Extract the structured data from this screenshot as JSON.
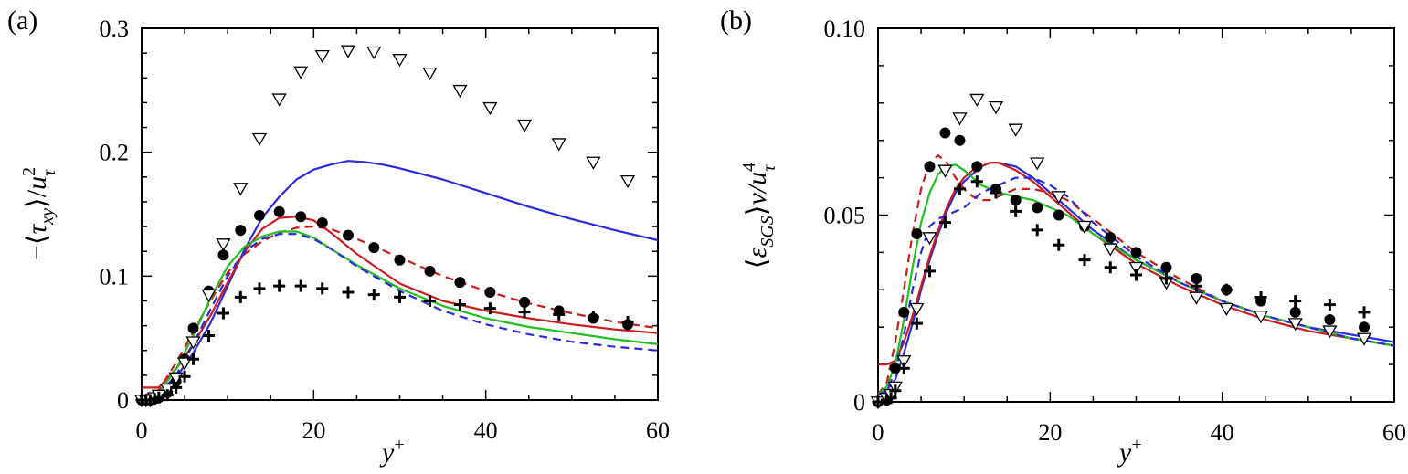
{
  "chart_data": [
    {
      "type": "line",
      "panel": "(a)",
      "xlabel": "y⁺",
      "ylabel": "−⟨τxy⟩/u²τ",
      "xlim": [
        0,
        60
      ],
      "ylim": [
        0,
        0.3
      ],
      "xticks": [
        0,
        20,
        40,
        60
      ],
      "yticks": [
        0,
        0.1,
        0.2,
        0.3
      ],
      "xtick_labels": [
        "0",
        "20",
        "40",
        "60"
      ],
      "ytick_labels": [
        "0",
        "0.1",
        "0.2",
        "0.3"
      ],
      "grid": false,
      "lines": [
        {
          "color": "#2a2ae0",
          "dash": "solid",
          "x": [
            0,
            2,
            4,
            6,
            8,
            10,
            12,
            14,
            16,
            18,
            20,
            22,
            24,
            26,
            28,
            30,
            35,
            40,
            45,
            50,
            55,
            60
          ],
          "y": [
            0.002,
            0.004,
            0.018,
            0.038,
            0.062,
            0.092,
            0.122,
            0.147,
            0.164,
            0.178,
            0.186,
            0.19,
            0.193,
            0.192,
            0.19,
            0.187,
            0.178,
            0.167,
            0.156,
            0.146,
            0.137,
            0.129
          ]
        },
        {
          "color": "#cc1b1b",
          "dash": "solid",
          "x": [
            0,
            2,
            4,
            6,
            8,
            10,
            12,
            14,
            16,
            18,
            20,
            22,
            25,
            30,
            35,
            40,
            45,
            50,
            55,
            60
          ],
          "y": [
            0.01,
            0.01,
            0.025,
            0.045,
            0.068,
            0.095,
            0.12,
            0.138,
            0.147,
            0.148,
            0.145,
            0.135,
            0.118,
            0.094,
            0.08,
            0.072,
            0.066,
            0.061,
            0.057,
            0.054
          ]
        },
        {
          "color": "#cc1b1b",
          "dash": "dash",
          "x": [
            0,
            2,
            4,
            6,
            8,
            10,
            12,
            14,
            16,
            18,
            20,
            22,
            25,
            30,
            35,
            40,
            45,
            50,
            55,
            60
          ],
          "y": [
            0.003,
            0.008,
            0.03,
            0.055,
            0.08,
            0.103,
            0.118,
            0.128,
            0.135,
            0.139,
            0.14,
            0.138,
            0.13,
            0.115,
            0.1,
            0.088,
            0.078,
            0.07,
            0.063,
            0.058
          ]
        },
        {
          "color": "#1fc01f",
          "dash": "solid",
          "x": [
            0,
            2,
            4,
            6,
            8,
            10,
            12,
            14,
            16,
            18,
            20,
            22,
            25,
            30,
            35,
            40,
            45,
            50,
            55,
            60
          ],
          "y": [
            0.002,
            0.006,
            0.025,
            0.052,
            0.082,
            0.108,
            0.124,
            0.132,
            0.136,
            0.136,
            0.131,
            0.122,
            0.109,
            0.09,
            0.076,
            0.066,
            0.059,
            0.054,
            0.049,
            0.045
          ]
        },
        {
          "color": "#2a2ae0",
          "dash": "dash",
          "x": [
            0,
            2,
            4,
            6,
            8,
            10,
            12,
            14,
            16,
            18,
            20,
            22,
            25,
            30,
            35,
            40,
            45,
            50,
            55,
            60
          ],
          "y": [
            0.002,
            0.005,
            0.02,
            0.045,
            0.073,
            0.1,
            0.12,
            0.13,
            0.134,
            0.134,
            0.13,
            0.122,
            0.108,
            0.088,
            0.072,
            0.061,
            0.053,
            0.047,
            0.043,
            0.04
          ]
        }
      ],
      "markers": [
        {
          "symbol": "circle",
          "x": [
            0,
            0.5,
            1,
            1.5,
            2,
            3,
            4,
            5,
            6,
            7.8,
            9.5,
            11.5,
            13.7,
            16,
            18.5,
            21,
            24,
            27,
            30,
            33.5,
            37,
            40.5,
            44.5,
            48.5,
            52.5,
            56.5
          ],
          "y": [
            0,
            0,
            0,
            0.001,
            0.002,
            0.006,
            0.015,
            0.033,
            0.058,
            0.088,
            0.117,
            0.137,
            0.149,
            0.152,
            0.148,
            0.143,
            0.133,
            0.123,
            0.113,
            0.104,
            0.095,
            0.087,
            0.079,
            0.072,
            0.066,
            0.061
          ]
        },
        {
          "symbol": "triangle-down",
          "x": [
            0,
            0.5,
            1,
            1.5,
            2,
            3,
            4,
            5,
            6,
            7.8,
            9.5,
            11.5,
            13.7,
            16,
            18.5,
            21,
            24,
            27,
            30,
            33.5,
            37,
            40.5,
            44.5,
            48.5,
            52.5,
            56.5
          ],
          "y": [
            0,
            0,
            0,
            0.002,
            0.004,
            0.009,
            0.018,
            0.03,
            0.047,
            0.085,
            0.126,
            0.171,
            0.211,
            0.243,
            0.265,
            0.278,
            0.282,
            0.281,
            0.275,
            0.264,
            0.25,
            0.236,
            0.222,
            0.207,
            0.192,
            0.177
          ]
        },
        {
          "symbol": "plus",
          "x": [
            0,
            0.5,
            1,
            1.5,
            2,
            3,
            4,
            5,
            6,
            7.8,
            9.5,
            11.5,
            13.7,
            16,
            18.5,
            21,
            24,
            27,
            30,
            33.5,
            37,
            40.5,
            44.5,
            48.5,
            52.5,
            56.5
          ],
          "y": [
            0,
            0,
            0,
            0.001,
            0.002,
            0.004,
            0.01,
            0.019,
            0.033,
            0.052,
            0.07,
            0.083,
            0.09,
            0.092,
            0.092,
            0.09,
            0.087,
            0.085,
            0.083,
            0.08,
            0.077,
            0.074,
            0.071,
            0.069,
            0.067,
            0.063
          ]
        }
      ]
    },
    {
      "type": "line",
      "panel": "(b)",
      "xlabel": "y⁺",
      "ylabel": "⟨εSGS⟩ν/u⁴τ",
      "xlim": [
        0,
        60
      ],
      "ylim": [
        0,
        0.1
      ],
      "xticks": [
        0,
        20,
        40,
        60
      ],
      "yticks": [
        0,
        0.05,
        0.1
      ],
      "xtick_labels": [
        "0",
        "20",
        "40",
        "60"
      ],
      "ytick_labels": [
        "0",
        "0.05",
        "0.10"
      ],
      "grid": false,
      "lines": [
        {
          "color": "#2a2ae0",
          "dash": "solid",
          "x": [
            0,
            1,
            2,
            3,
            4,
            5,
            6,
            7,
            8,
            9,
            10,
            11,
            12,
            13,
            14,
            15,
            16,
            18,
            20,
            22,
            25,
            30,
            35,
            40,
            45,
            50,
            55,
            60
          ],
          "y": [
            0.002,
            0.003,
            0.006,
            0.013,
            0.021,
            0.03,
            0.038,
            0.045,
            0.051,
            0.056,
            0.059,
            0.061,
            0.063,
            0.064,
            0.064,
            0.0635,
            0.063,
            0.06,
            0.056,
            0.052,
            0.046,
            0.038,
            0.032,
            0.027,
            0.023,
            0.02,
            0.018,
            0.016
          ]
        },
        {
          "color": "#cc1b1b",
          "dash": "solid",
          "x": [
            0,
            1,
            2,
            3,
            4,
            5,
            6,
            7,
            8,
            9,
            10,
            11,
            12,
            13,
            14,
            15,
            16,
            18,
            20,
            22,
            25,
            30,
            35,
            40,
            45,
            50,
            55,
            60
          ],
          "y": [
            0.01,
            0.01,
            0.011,
            0.016,
            0.023,
            0.031,
            0.039,
            0.046,
            0.052,
            0.057,
            0.06,
            0.062,
            0.063,
            0.064,
            0.064,
            0.063,
            0.062,
            0.059,
            0.055,
            0.051,
            0.045,
            0.037,
            0.031,
            0.026,
            0.022,
            0.019,
            0.017,
            0.015
          ]
        },
        {
          "color": "#cc1b1b",
          "dash": "dash",
          "x": [
            0,
            1,
            2,
            3,
            4,
            5,
            6,
            7,
            8,
            9,
            10,
            11,
            12,
            13,
            14,
            15,
            16,
            18,
            20,
            22,
            25,
            30,
            35,
            40,
            45,
            50,
            55,
            60
          ],
          "y": [
            0.002,
            0.005,
            0.016,
            0.03,
            0.045,
            0.057,
            0.064,
            0.066,
            0.064,
            0.06,
            0.057,
            0.055,
            0.054,
            0.054,
            0.055,
            0.056,
            0.057,
            0.057,
            0.056,
            0.054,
            0.049,
            0.04,
            0.033,
            0.027,
            0.023,
            0.02,
            0.017,
            0.015
          ]
        },
        {
          "color": "#1fc01f",
          "dash": "solid",
          "x": [
            0,
            1,
            2,
            3,
            4,
            5,
            6,
            7,
            8,
            9,
            10,
            11,
            12,
            13,
            14,
            15,
            16,
            18,
            20,
            22,
            25,
            30,
            35,
            40,
            45,
            50,
            55,
            60
          ],
          "y": [
            0.002,
            0.004,
            0.01,
            0.022,
            0.036,
            0.048,
            0.056,
            0.061,
            0.063,
            0.0635,
            0.062,
            0.06,
            0.058,
            0.057,
            0.056,
            0.0555,
            0.055,
            0.054,
            0.052,
            0.05,
            0.045,
            0.038,
            0.032,
            0.027,
            0.023,
            0.02,
            0.017,
            0.015
          ]
        },
        {
          "color": "#2a2ae0",
          "dash": "dash",
          "x": [
            0,
            1,
            2,
            3,
            4,
            5,
            6,
            7,
            8,
            9,
            10,
            11,
            12,
            13,
            14,
            15,
            16,
            18,
            20,
            22,
            25,
            30,
            35,
            40,
            45,
            50,
            55,
            60
          ],
          "y": [
            0.002,
            0.003,
            0.008,
            0.018,
            0.03,
            0.04,
            0.047,
            0.049,
            0.05,
            0.051,
            0.052,
            0.054,
            0.056,
            0.057,
            0.058,
            0.059,
            0.06,
            0.06,
            0.058,
            0.055,
            0.048,
            0.039,
            0.032,
            0.027,
            0.023,
            0.02,
            0.017,
            0.015
          ]
        }
      ],
      "markers": [
        {
          "symbol": "circle",
          "x": [
            0,
            1,
            1.5,
            2,
            3,
            4.5,
            6,
            7.8,
            9.5,
            11.5,
            13.7,
            16,
            18.5,
            21,
            24,
            27,
            30,
            33.5,
            37,
            40.5,
            44.5,
            48.5,
            52.5,
            56.5
          ],
          "y": [
            0,
            0.0005,
            0.002,
            0.009,
            0.024,
            0.045,
            0.063,
            0.072,
            0.07,
            0.063,
            0.057,
            0.054,
            0.052,
            0.05,
            0.047,
            0.044,
            0.04,
            0.036,
            0.033,
            0.03,
            0.027,
            0.024,
            0.022,
            0.02
          ]
        },
        {
          "symbol": "triangle-down",
          "x": [
            0,
            1,
            1.5,
            2,
            3,
            4.5,
            6,
            7.8,
            9.5,
            11.5,
            13.7,
            16,
            18.5,
            21,
            24,
            27,
            30,
            33.5,
            37,
            40.5,
            44.5,
            48.5,
            52.5,
            56.5
          ],
          "y": [
            0,
            0.001,
            0.002,
            0.004,
            0.011,
            0.025,
            0.044,
            0.062,
            0.076,
            0.081,
            0.079,
            0.073,
            0.064,
            0.055,
            0.047,
            0.041,
            0.036,
            0.032,
            0.028,
            0.025,
            0.023,
            0.021,
            0.019,
            0.017
          ]
        },
        {
          "symbol": "plus",
          "x": [
            0,
            1,
            1.5,
            2,
            3,
            4.5,
            6,
            7.8,
            9.5,
            11.5,
            13.7,
            16,
            18.5,
            21,
            24,
            27,
            30,
            33.5,
            37,
            40.5,
            44.5,
            48.5,
            52.5,
            56.5
          ],
          "y": [
            0,
            0.0005,
            0.001,
            0.003,
            0.009,
            0.021,
            0.035,
            0.048,
            0.057,
            0.059,
            0.056,
            0.051,
            0.046,
            0.042,
            0.038,
            0.036,
            0.034,
            0.033,
            0.031,
            0.03,
            0.028,
            0.027,
            0.026,
            0.024
          ]
        }
      ]
    }
  ]
}
